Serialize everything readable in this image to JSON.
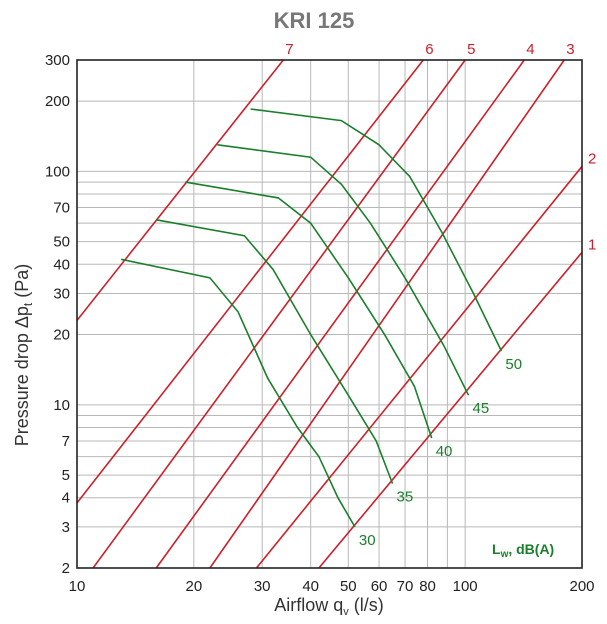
{
  "chart_data": {
    "type": "line",
    "title": "KRI 125",
    "xlabel": "Airflow q",
    "xlabel_sub": "v",
    "xlabel_unit": " (l/s)",
    "ylabel": "Pressure drop Δp",
    "ylabel_sub": "t",
    "ylabel_unit": " (Pa)",
    "x_scale": "log",
    "y_scale": "log",
    "xlim": [
      10,
      200
    ],
    "ylim": [
      2,
      300
    ],
    "x_ticks": [
      10,
      20,
      30,
      40,
      50,
      60,
      70,
      80,
      100,
      200
    ],
    "x_tick_labels": [
      "10",
      "20",
      "30",
      "40",
      "50",
      "60",
      "70",
      "80",
      "100",
      "200"
    ],
    "y_ticks": [
      2,
      3,
      4,
      5,
      7,
      10,
      20,
      30,
      40,
      50,
      70,
      100,
      200,
      300
    ],
    "y_tick_labels": [
      "2",
      "3",
      "4",
      "5",
      "7",
      "10",
      "20",
      "30",
      "40",
      "50",
      "70",
      "100",
      "200",
      "300"
    ],
    "grid": true,
    "legend_text": {
      "main": "L",
      "sub": "w",
      "rest": ", dB(A)"
    },
    "legend_placement": "bottom-right",
    "colors": {
      "damper_lines": "#cc1f2a",
      "sound_curves": "#1a7f2a",
      "grid": "#b8b8b8",
      "frame": "#222222"
    },
    "damper_lines": [
      {
        "name": "1",
        "points": [
          [
            42,
            2
          ],
          [
            200,
            45
          ]
        ]
      },
      {
        "name": "2",
        "points": [
          [
            29,
            2
          ],
          [
            200,
            105
          ]
        ]
      },
      {
        "name": "3",
        "points": [
          [
            22,
            2
          ],
          [
            180,
            300
          ]
        ]
      },
      {
        "name": "4",
        "points": [
          [
            16,
            2
          ],
          [
            142,
            300
          ]
        ]
      },
      {
        "name": "5",
        "points": [
          [
            11,
            2
          ],
          [
            100,
            300
          ]
        ]
      },
      {
        "name": "6",
        "points": [
          [
            10,
            3.8
          ],
          [
            78,
            300
          ]
        ]
      },
      {
        "name": "7",
        "points": [
          [
            10,
            23
          ],
          [
            34,
            300
          ]
        ]
      }
    ],
    "sound_curves": [
      {
        "name": "30",
        "points": [
          [
            13,
            42
          ],
          [
            22,
            35
          ],
          [
            26,
            25
          ],
          [
            31,
            13
          ],
          [
            37,
            8
          ],
          [
            42,
            6
          ],
          [
            47,
            4
          ],
          [
            52,
            3
          ]
        ]
      },
      {
        "name": "35",
        "points": [
          [
            16,
            62
          ],
          [
            27,
            53
          ],
          [
            32,
            38
          ],
          [
            40,
            20
          ],
          [
            50,
            11
          ],
          [
            59,
            7
          ],
          [
            65,
            4.6
          ]
        ]
      },
      {
        "name": "40",
        "points": [
          [
            19,
            90
          ],
          [
            33,
            77
          ],
          [
            40,
            60
          ],
          [
            50,
            35
          ],
          [
            62,
            20
          ],
          [
            74,
            12
          ],
          [
            82,
            7.2
          ]
        ]
      },
      {
        "name": "45",
        "points": [
          [
            23,
            130
          ],
          [
            40,
            115
          ],
          [
            48,
            88
          ],
          [
            57,
            60
          ],
          [
            70,
            35
          ],
          [
            88,
            18
          ],
          [
            102,
            11
          ]
        ]
      },
      {
        "name": "50",
        "points": [
          [
            28,
            185
          ],
          [
            48,
            165
          ],
          [
            60,
            130
          ],
          [
            72,
            95
          ],
          [
            87,
            55
          ],
          [
            105,
            30
          ],
          [
            124,
            17
          ]
        ]
      }
    ]
  }
}
